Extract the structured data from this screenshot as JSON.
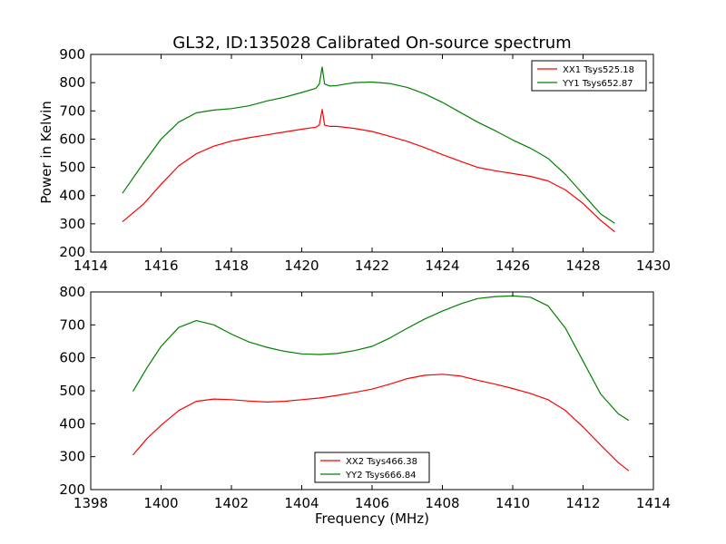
{
  "title": "GL32, ID:135028 Calibrated On-source spectrum",
  "ylabel": "Power in Kelvin",
  "xlabel": "Frequency (MHz)",
  "colors": {
    "red": "#ff0000",
    "green": "#008000"
  },
  "chart_data": [
    {
      "type": "line",
      "xlim": [
        1414,
        1430
      ],
      "ylim": [
        200,
        900
      ],
      "xticks": [
        "1414",
        "1416",
        "1418",
        "1420",
        "1422",
        "1424",
        "1426",
        "1428",
        "1430"
      ],
      "yticks": [
        "200",
        "300",
        "400",
        "500",
        "600",
        "700",
        "800",
        "900"
      ],
      "legend_position": "top-right",
      "series": [
        {
          "name": "XX1 Tsys525.18",
          "color": "#ff0000",
          "x": [
            1414.9,
            1415.5,
            1416.0,
            1416.5,
            1417.0,
            1417.5,
            1418.0,
            1418.5,
            1419.0,
            1419.5,
            1420.0,
            1420.4,
            1420.5,
            1420.58,
            1420.65,
            1420.8,
            1421.0,
            1421.5,
            1422.0,
            1422.5,
            1423.0,
            1423.5,
            1424.0,
            1424.5,
            1425.0,
            1425.5,
            1426.0,
            1426.5,
            1427.0,
            1427.5,
            1428.0,
            1428.5,
            1428.9
          ],
          "y": [
            307,
            370,
            440,
            505,
            548,
            575,
            593,
            605,
            615,
            625,
            635,
            642,
            650,
            705,
            650,
            645,
            645,
            638,
            627,
            610,
            592,
            570,
            545,
            522,
            500,
            488,
            478,
            468,
            452,
            420,
            372,
            312,
            272
          ]
        },
        {
          "name": "YY1 Tsys652.87",
          "color": "#008000",
          "x": [
            1414.9,
            1415.5,
            1416.0,
            1416.5,
            1417.0,
            1417.5,
            1418.0,
            1418.5,
            1419.0,
            1419.5,
            1420.0,
            1420.4,
            1420.5,
            1420.58,
            1420.65,
            1420.8,
            1421.0,
            1421.5,
            1422.0,
            1422.5,
            1423.0,
            1423.5,
            1424.0,
            1424.5,
            1425.0,
            1425.5,
            1426.0,
            1426.5,
            1427.0,
            1427.5,
            1428.0,
            1428.5,
            1428.9
          ],
          "y": [
            408,
            515,
            600,
            660,
            693,
            703,
            708,
            718,
            735,
            748,
            765,
            780,
            795,
            855,
            795,
            788,
            790,
            800,
            802,
            797,
            783,
            760,
            730,
            695,
            660,
            630,
            597,
            568,
            532,
            475,
            405,
            335,
            302
          ]
        }
      ]
    },
    {
      "type": "line",
      "xlim": [
        1398,
        1414
      ],
      "ylim": [
        200,
        800
      ],
      "xticks": [
        "1398",
        "1400",
        "1402",
        "1404",
        "1406",
        "1408",
        "1410",
        "1412",
        "1414"
      ],
      "yticks": [
        "200",
        "300",
        "400",
        "500",
        "600",
        "700",
        "800"
      ],
      "legend_position": "lower-center",
      "series": [
        {
          "name": "XX2 Tsys466.38",
          "color": "#ff0000",
          "x": [
            1399.2,
            1399.6,
            1400.0,
            1400.5,
            1401.0,
            1401.5,
            1402.0,
            1402.5,
            1403.0,
            1403.5,
            1404.0,
            1404.5,
            1405.0,
            1405.5,
            1406.0,
            1406.5,
            1407.0,
            1407.5,
            1408.0,
            1408.5,
            1409.0,
            1409.5,
            1410.0,
            1410.5,
            1411.0,
            1411.5,
            1412.0,
            1412.5,
            1413.0,
            1413.3
          ],
          "y": [
            305,
            355,
            395,
            440,
            468,
            475,
            473,
            469,
            466,
            468,
            473,
            478,
            486,
            495,
            505,
            520,
            537,
            547,
            550,
            545,
            532,
            520,
            507,
            492,
            473,
            440,
            390,
            335,
            282,
            257
          ]
        },
        {
          "name": "YY2 Tsys666.84",
          "color": "#008000",
          "x": [
            1399.2,
            1399.6,
            1400.0,
            1400.5,
            1401.0,
            1401.5,
            1402.0,
            1402.5,
            1403.0,
            1403.5,
            1404.0,
            1404.5,
            1405.0,
            1405.5,
            1406.0,
            1406.5,
            1407.0,
            1407.5,
            1408.0,
            1408.5,
            1409.0,
            1409.5,
            1410.0,
            1410.5,
            1411.0,
            1411.5,
            1412.0,
            1412.5,
            1413.0,
            1413.3
          ],
          "y": [
            498,
            570,
            635,
            692,
            713,
            700,
            672,
            648,
            632,
            620,
            612,
            610,
            613,
            622,
            635,
            660,
            690,
            718,
            742,
            763,
            780,
            786,
            788,
            784,
            758,
            690,
            590,
            490,
            430,
            410
          ]
        }
      ]
    }
  ]
}
